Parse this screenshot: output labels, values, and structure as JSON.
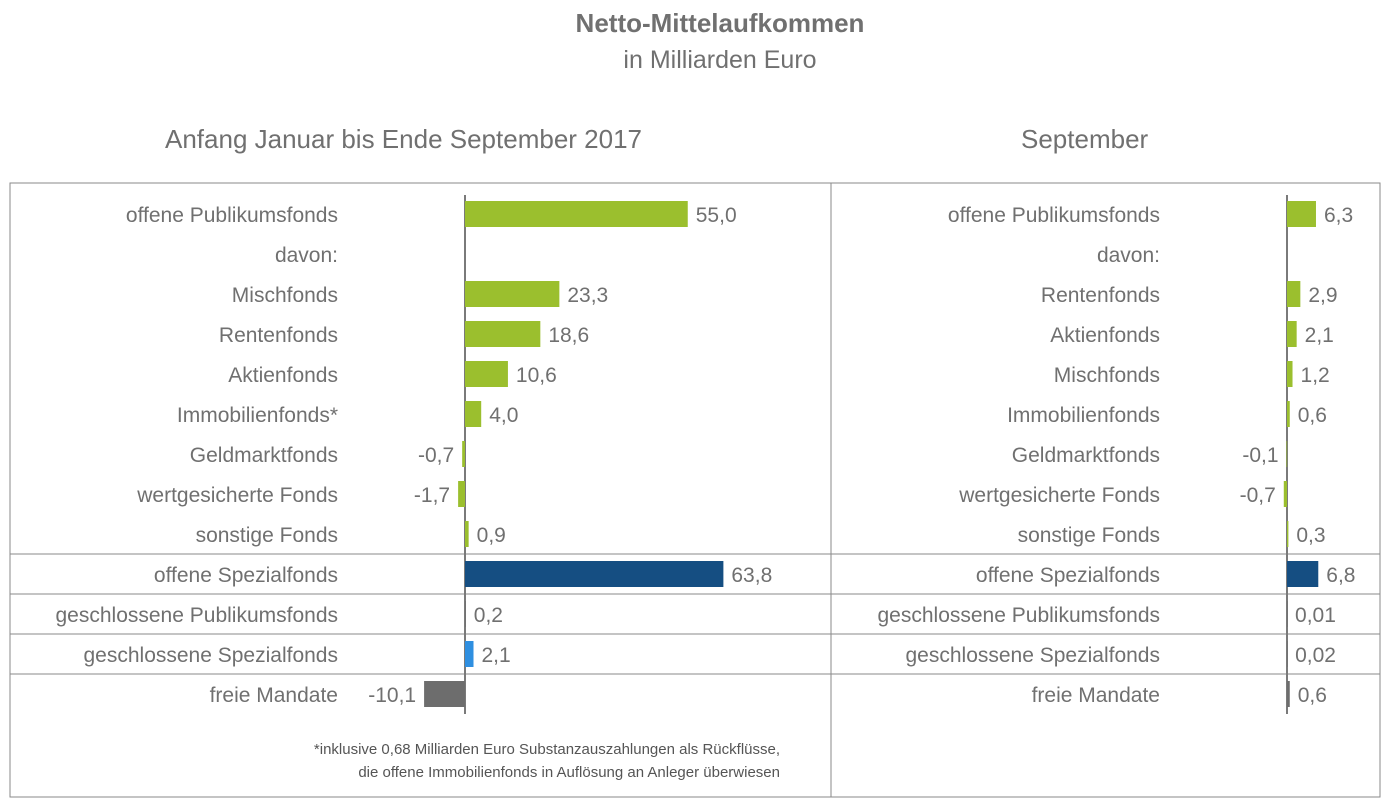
{
  "title": "Netto-Mittelaufkommen",
  "subtitle": "in Milliarden Euro",
  "footnote": {
    "line1": "*inklusive 0,68 Milliarden Euro Substanzauszahlungen als Rückflüsse,",
    "line2": "die offene Immobilienfonds in Auflösung an Anleger überwiesen"
  },
  "colors": {
    "green": "#9bbf2e",
    "navy": "#154e82",
    "blue": "#2f8fe0",
    "gray": "#6d6d6d",
    "text": "#707070",
    "border": "#8a8a8a"
  },
  "chart_data": [
    {
      "type": "bar",
      "orientation": "horizontal",
      "title": "Anfang Januar bis Ende September 2017",
      "categories": [
        "offene Publikumsfonds",
        "davon:",
        "Mischfonds",
        "Rentenfonds",
        "Aktienfonds",
        "Immobilienfonds*",
        "Geldmarktfonds",
        "wertgesicherte Fonds",
        "sonstige Fonds",
        "offene Spezialfonds",
        "geschlossene Publikumsfonds",
        "geschlossene Spezialfonds",
        "freie Mandate"
      ],
      "values": [
        55.0,
        null,
        23.3,
        18.6,
        10.6,
        4.0,
        -0.7,
        -1.7,
        0.9,
        63.8,
        0.2,
        2.1,
        -10.1
      ],
      "labels": [
        "55,0",
        "",
        "23,3",
        "18,6",
        "10,6",
        "4,0",
        "-0,7",
        "-1,7",
        "0,9",
        "63,8",
        "0,2",
        "2,1",
        "-10,1"
      ],
      "colors": [
        "green",
        null,
        "green",
        "green",
        "green",
        "green",
        "green",
        "green",
        "green",
        "navy",
        "gray",
        "blue",
        "gray"
      ]
    },
    {
      "type": "bar",
      "orientation": "horizontal",
      "title": "September",
      "categories": [
        "offene Publikumsfonds",
        "davon:",
        "Rentenfonds",
        "Aktienfonds",
        "Mischfonds",
        "Immobilienfonds",
        "Geldmarktfonds",
        "wertgesicherte Fonds",
        "sonstige Fonds",
        "offene Spezialfonds",
        "geschlossene Publikumsfonds",
        "geschlossene Spezialfonds",
        "freie Mandate"
      ],
      "values": [
        6.3,
        null,
        2.9,
        2.1,
        1.2,
        0.6,
        -0.1,
        -0.7,
        0.3,
        6.8,
        0.01,
        0.02,
        0.6
      ],
      "labels": [
        "6,3",
        "",
        "2,9",
        "2,1",
        "1,2",
        "0,6",
        "-0,1",
        "-0,7",
        "0,3",
        "6,8",
        "0,01",
        "0,02",
        "0,6"
      ],
      "colors": [
        "green",
        null,
        "green",
        "green",
        "green",
        "green",
        "green",
        "green",
        "green",
        "navy",
        "gray",
        "gray",
        "gray"
      ]
    }
  ]
}
